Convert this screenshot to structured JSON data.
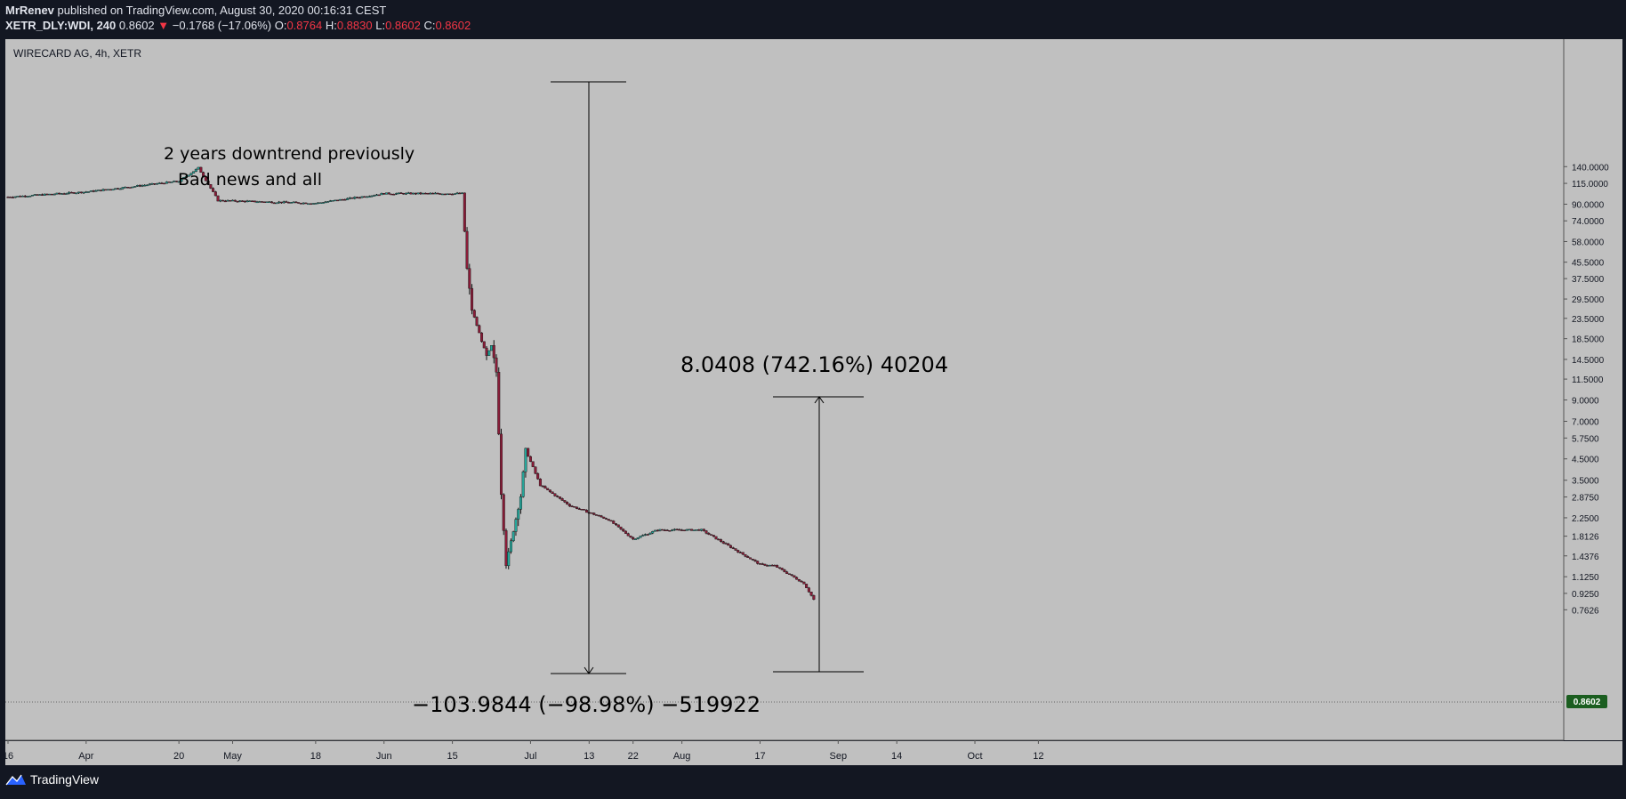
{
  "header": {
    "author": "MrRenev",
    "published": "published on TradingView.com, August 30, 2020 00:16:31 CEST",
    "symbol": "XETR_DLY:WDI, 240",
    "last": "0.8602",
    "change": "−0.1768 (−17.06%)",
    "o_label": "O:",
    "o_value": "0.8764",
    "h_label": "H:",
    "h_value": "0.8830",
    "l_label": "L:",
    "l_value": "0.8602",
    "c_label": "C:",
    "c_value": "0.8602"
  },
  "footer": {
    "brand": "TradingView"
  },
  "colors": {
    "background": "#131722",
    "pane": "#c0c0c0",
    "up": "#26a69a",
    "down": "#8a1c38",
    "last_price_tag": "#1b5e20"
  },
  "chart_data": {
    "type": "candlestick",
    "title": "WIRECARD AG, 4h, XETR",
    "y_scale": "log",
    "ylim": [
      0.68,
      145
    ],
    "y_ticks": [
      "140.0000",
      "115.0000",
      "90.0000",
      "74.0000",
      "58.0000",
      "45.5000",
      "37.5000",
      "29.5000",
      "23.5000",
      "18.5000",
      "14.5000",
      "11.5000",
      "9.0000",
      "7.0000",
      "5.7500",
      "4.5000",
      "3.5000",
      "2.8750",
      "2.2500",
      "1.8126",
      "1.4376",
      "1.1250",
      "0.9250",
      "0.7626"
    ],
    "x_ticks": [
      "16",
      "Apr",
      "20",
      "May",
      "18",
      "Jun",
      "15",
      "Jul",
      "13",
      "22",
      "Aug",
      "17",
      "Sep",
      "14",
      "Oct",
      "12"
    ],
    "last_price": "0.8602",
    "series": [
      {
        "date": "2020-03-16",
        "close": 98
      },
      {
        "date": "2020-04-01",
        "close": 104
      },
      {
        "date": "2020-04-20",
        "close": 118
      },
      {
        "date": "2020-04-24",
        "close": 138
      },
      {
        "date": "2020-04-28",
        "close": 94
      },
      {
        "date": "2020-05-18",
        "close": 91
      },
      {
        "date": "2020-06-01",
        "close": 102
      },
      {
        "date": "2020-06-17",
        "close": 102
      },
      {
        "date": "2020-06-18",
        "close": 42
      },
      {
        "date": "2020-06-19",
        "close": 26
      },
      {
        "date": "2020-06-22",
        "close": 15
      },
      {
        "date": "2020-06-23",
        "close": 17
      },
      {
        "date": "2020-06-24",
        "close": 12.5
      },
      {
        "date": "2020-06-25",
        "close": 3.0
      },
      {
        "date": "2020-06-26",
        "close": 1.3
      },
      {
        "date": "2020-06-29",
        "close": 2.9
      },
      {
        "date": "2020-06-30",
        "close": 5.0
      },
      {
        "date": "2020-07-03",
        "close": 3.3
      },
      {
        "date": "2020-07-09",
        "close": 2.6
      },
      {
        "date": "2020-07-17",
        "close": 2.2
      },
      {
        "date": "2020-07-22",
        "close": 1.75
      },
      {
        "date": "2020-07-27",
        "close": 1.95
      },
      {
        "date": "2020-08-05",
        "close": 1.95
      },
      {
        "date": "2020-08-17",
        "close": 1.3
      },
      {
        "date": "2020-08-20",
        "close": 1.28
      },
      {
        "date": "2020-08-26",
        "close": 1.04
      },
      {
        "date": "2020-08-28",
        "close": 0.8602
      }
    ],
    "annotations": [
      {
        "text": "2 years downtrend previously"
      },
      {
        "text": "Bad news and all"
      },
      {
        "text": "8.0408 (742.16%) 40204"
      },
      {
        "text": "−103.9844 (−98.98%) −519922"
      }
    ]
  }
}
